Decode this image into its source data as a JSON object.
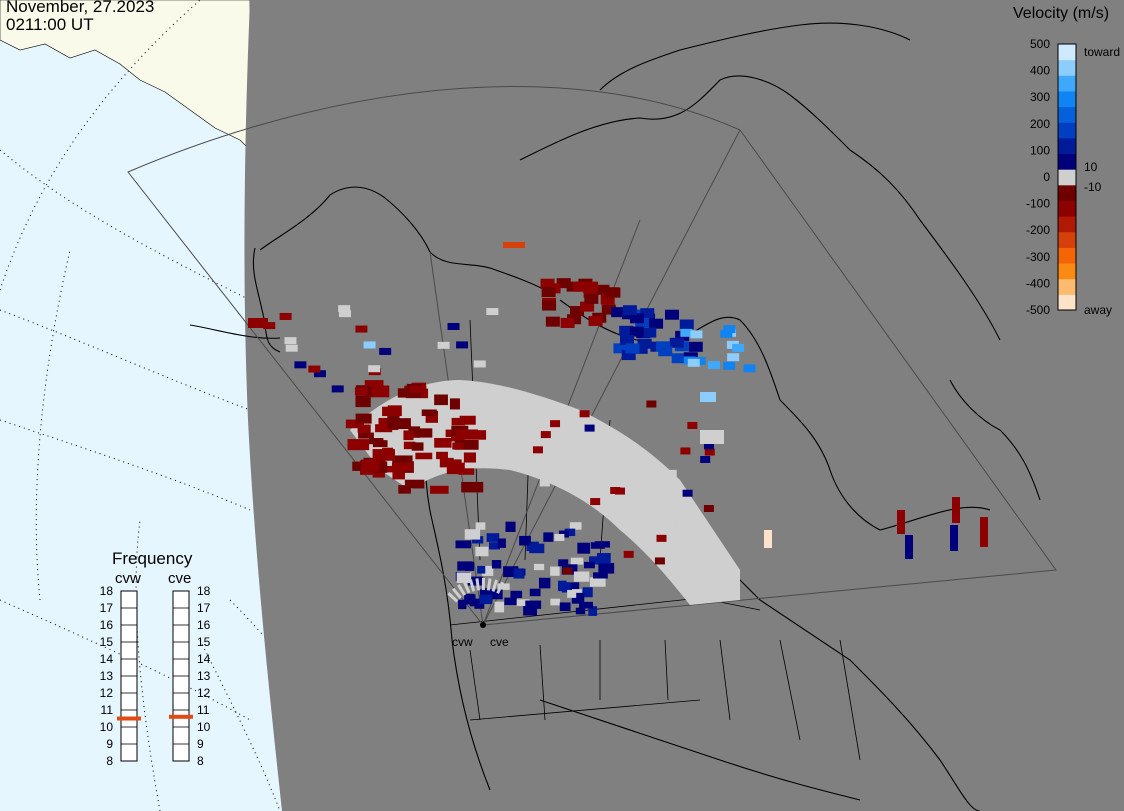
{
  "header": {
    "date": "November, 27.2023",
    "time": "0211:00 UT"
  },
  "velocity_legend": {
    "title": "Velocity (m/s)",
    "ticks": [
      "500",
      "400",
      "300",
      "200",
      "100",
      "0",
      "-100",
      "-200",
      "-300",
      "-400",
      "-500"
    ],
    "inner_ticks": [
      "10",
      "-10"
    ],
    "toward_label": "toward",
    "away_label": "away",
    "colors": [
      "#fde3c8",
      "#fdbb70",
      "#fb8a12",
      "#f46508",
      "#d6400a",
      "#b01a04",
      "#8c0000",
      "#6e0000",
      "#cfcfcf",
      "#00007a",
      "#001b9a",
      "#0040c0",
      "#0660dc",
      "#1084f2",
      "#40a8fa",
      "#8ccdfd",
      "#cfe9ff"
    ]
  },
  "frequency_panel": {
    "title": "Frequency",
    "radars": [
      "cvw",
      "cve"
    ],
    "mhz_ticks": [
      "18",
      "17",
      "16",
      "15",
      "14",
      "13",
      "12",
      "11",
      "10",
      "9",
      "8"
    ],
    "cvw_mhz": 10.5,
    "cve_mhz": 10.6,
    "marker_color": "#e34a12"
  },
  "sites": {
    "labels": [
      "cvw",
      "cve"
    ]
  },
  "map_colors": {
    "night": "#808080",
    "land_day": "#fafaea",
    "ocean_day": "#e6f6ff",
    "coast": "#000000"
  }
}
